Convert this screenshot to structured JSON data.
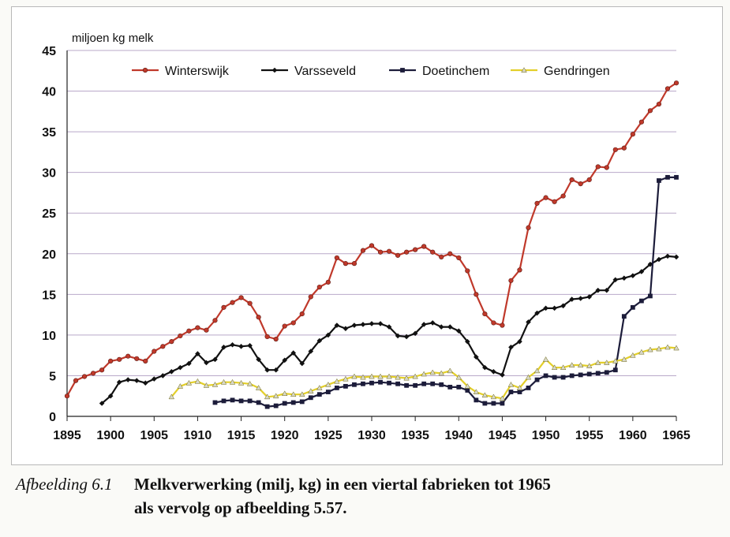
{
  "chart_data": {
    "type": "line",
    "ylabel": "miljoen kg melk",
    "xlabel": "",
    "xlim": [
      1895,
      1965
    ],
    "ylim": [
      0,
      45
    ],
    "x_ticks": [
      1895,
      1900,
      1905,
      1910,
      1915,
      1920,
      1925,
      1930,
      1935,
      1940,
      1945,
      1950,
      1955,
      1960,
      1965
    ],
    "y_ticks": [
      0,
      5,
      10,
      15,
      20,
      25,
      30,
      35,
      40,
      45
    ],
    "grid": "horizontal",
    "legend_position": "top",
    "series": [
      {
        "name": "Winterswijk",
        "color": "#c0392b",
        "marker": "circle",
        "x": [
          1895,
          1896,
          1897,
          1898,
          1899,
          1900,
          1901,
          1902,
          1903,
          1904,
          1905,
          1906,
          1907,
          1908,
          1909,
          1910,
          1911,
          1912,
          1913,
          1914,
          1915,
          1916,
          1917,
          1918,
          1919,
          1920,
          1921,
          1922,
          1923,
          1924,
          1925,
          1926,
          1927,
          1928,
          1929,
          1930,
          1931,
          1932,
          1933,
          1934,
          1935,
          1936,
          1937,
          1938,
          1939,
          1940,
          1941,
          1942,
          1943,
          1944,
          1945,
          1946,
          1947,
          1948,
          1949,
          1950,
          1951,
          1952,
          1953,
          1954,
          1955,
          1956,
          1957,
          1958,
          1959,
          1960,
          1961,
          1962,
          1963,
          1964,
          1965
        ],
        "values": [
          2.5,
          4.4,
          4.9,
          5.3,
          5.7,
          6.8,
          7.0,
          7.4,
          7.1,
          6.8,
          8.0,
          8.6,
          9.2,
          9.9,
          10.5,
          10.9,
          10.6,
          11.8,
          13.4,
          14.0,
          14.6,
          13.9,
          12.2,
          9.8,
          9.5,
          11.1,
          11.5,
          12.6,
          14.7,
          15.9,
          16.5,
          19.5,
          18.8,
          18.8,
          20.4,
          21.0,
          20.2,
          20.3,
          19.8,
          20.2,
          20.5,
          20.9,
          20.2,
          19.6,
          20.0,
          19.5,
          17.9,
          15.0,
          12.6,
          11.5,
          11.2,
          16.7,
          18.0,
          23.2,
          26.2,
          26.9,
          26.4,
          27.1,
          29.1,
          28.6,
          29.1,
          30.7,
          30.6,
          32.8,
          33.0,
          34.7,
          36.2,
          37.6,
          38.4,
          40.3,
          41.0
        ]
      },
      {
        "name": "Varsseveld",
        "color": "#111111",
        "marker": "diamond",
        "x": [
          1899,
          1900,
          1901,
          1902,
          1903,
          1904,
          1905,
          1906,
          1907,
          1908,
          1909,
          1910,
          1911,
          1912,
          1913,
          1914,
          1915,
          1916,
          1917,
          1918,
          1919,
          1920,
          1921,
          1922,
          1923,
          1924,
          1925,
          1926,
          1927,
          1928,
          1929,
          1930,
          1931,
          1932,
          1933,
          1934,
          1935,
          1936,
          1937,
          1938,
          1939,
          1940,
          1941,
          1942,
          1943,
          1944,
          1945,
          1946,
          1947,
          1948,
          1949,
          1950,
          1951,
          1952,
          1953,
          1954,
          1955,
          1956,
          1957,
          1958,
          1959,
          1960,
          1961,
          1962,
          1963,
          1964,
          1965
        ],
        "values": [
          1.6,
          2.5,
          4.2,
          4.5,
          4.4,
          4.1,
          4.6,
          5.0,
          5.5,
          6.0,
          6.5,
          7.7,
          6.6,
          7.0,
          8.5,
          8.8,
          8.6,
          8.7,
          7.0,
          5.7,
          5.7,
          6.9,
          7.8,
          6.5,
          8.0,
          9.3,
          10.0,
          11.2,
          10.8,
          11.2,
          11.3,
          11.4,
          11.4,
          11.0,
          9.9,
          9.8,
          10.2,
          11.3,
          11.5,
          11.0,
          11.0,
          10.5,
          9.2,
          7.3,
          6.0,
          5.5,
          5.1,
          8.5,
          9.2,
          11.6,
          12.7,
          13.3,
          13.3,
          13.6,
          14.4,
          14.5,
          14.7,
          15.5,
          15.5,
          16.8,
          17.0,
          17.3,
          17.8,
          18.7,
          19.3,
          19.7,
          19.6
        ]
      },
      {
        "name": "Doetinchem",
        "color": "#1c1c3a",
        "marker": "square",
        "x": [
          1912,
          1913,
          1914,
          1915,
          1916,
          1917,
          1918,
          1919,
          1920,
          1921,
          1922,
          1923,
          1924,
          1925,
          1926,
          1927,
          1928,
          1929,
          1930,
          1931,
          1932,
          1933,
          1934,
          1935,
          1936,
          1937,
          1938,
          1939,
          1940,
          1941,
          1942,
          1943,
          1944,
          1945,
          1946,
          1947,
          1948,
          1949,
          1950,
          1951,
          1952,
          1953,
          1954,
          1955,
          1956,
          1957,
          1958,
          1959,
          1960,
          1961,
          1962,
          1963,
          1964,
          1965
        ],
        "values": [
          1.7,
          1.9,
          2.0,
          1.9,
          1.9,
          1.7,
          1.2,
          1.3,
          1.6,
          1.7,
          1.8,
          2.3,
          2.7,
          3.0,
          3.5,
          3.7,
          3.9,
          4.0,
          4.1,
          4.2,
          4.1,
          4.0,
          3.8,
          3.8,
          4.0,
          4.0,
          3.9,
          3.6,
          3.6,
          3.2,
          2.0,
          1.6,
          1.6,
          1.6,
          3.0,
          3.0,
          3.5,
          4.5,
          5.0,
          4.8,
          4.8,
          5.0,
          5.1,
          5.2,
          5.3,
          5.4,
          5.7,
          12.3,
          13.4,
          14.2,
          14.8,
          29.0,
          29.4,
          29.4
        ]
      },
      {
        "name": "Gendringen",
        "color": "#e3cf2a",
        "marker": "triangle",
        "x": [
          1907,
          1908,
          1909,
          1910,
          1911,
          1912,
          1913,
          1914,
          1915,
          1916,
          1917,
          1918,
          1919,
          1920,
          1921,
          1922,
          1923,
          1924,
          1925,
          1926,
          1927,
          1928,
          1929,
          1930,
          1931,
          1932,
          1933,
          1934,
          1935,
          1936,
          1937,
          1938,
          1939,
          1940,
          1941,
          1942,
          1943,
          1944,
          1945,
          1946,
          1947,
          1948,
          1949,
          1950,
          1951,
          1952,
          1953,
          1954,
          1955,
          1956,
          1957,
          1958,
          1959,
          1960,
          1961,
          1962,
          1963,
          1964,
          1965
        ],
        "values": [
          2.4,
          3.7,
          4.1,
          4.3,
          3.8,
          3.9,
          4.2,
          4.2,
          4.1,
          4.0,
          3.5,
          2.4,
          2.5,
          2.8,
          2.7,
          2.7,
          3.1,
          3.5,
          3.9,
          4.3,
          4.6,
          4.9,
          4.8,
          4.9,
          4.9,
          4.9,
          4.8,
          4.7,
          4.9,
          5.2,
          5.4,
          5.3,
          5.6,
          4.8,
          3.7,
          3.0,
          2.6,
          2.4,
          2.2,
          3.9,
          3.5,
          4.8,
          5.6,
          7.0,
          6.0,
          6.0,
          6.3,
          6.3,
          6.2,
          6.6,
          6.6,
          6.8,
          7.0,
          7.5,
          7.9,
          8.2,
          8.3,
          8.5,
          8.4
        ]
      }
    ]
  },
  "caption": {
    "label": "Afbeelding 6.1",
    "line1": "Melkverwerking (milj, kg)  in een viertal fabrieken tot  1965",
    "line2": "als vervolg op afbeelding 5.57."
  }
}
